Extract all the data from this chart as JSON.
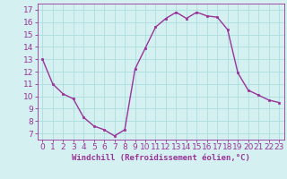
{
  "x": [
    0,
    1,
    2,
    3,
    4,
    5,
    6,
    7,
    8,
    9,
    10,
    11,
    12,
    13,
    14,
    15,
    16,
    17,
    18,
    19,
    20,
    21,
    22,
    23
  ],
  "y": [
    13,
    11,
    10.2,
    9.8,
    8.3,
    7.6,
    7.3,
    6.8,
    7.3,
    12.2,
    13.9,
    15.6,
    16.3,
    16.8,
    16.3,
    16.8,
    16.5,
    16.4,
    15.4,
    11.9,
    10.5,
    10.1,
    9.7,
    9.5
  ],
  "line_color": "#993399",
  "marker": "s",
  "marker_size": 1.8,
  "bg_color": "#d4f0f0",
  "grid_color": "#aadddd",
  "xlabel": "Windchill (Refroidissement éolien,°C)",
  "ylabel_ticks": [
    7,
    8,
    9,
    10,
    11,
    12,
    13,
    14,
    15,
    16,
    17
  ],
  "xlim": [
    -0.5,
    23.5
  ],
  "ylim": [
    6.5,
    17.5
  ],
  "line_color_border": "#993399",
  "xlabel_color": "#993399",
  "tick_color": "#993399",
  "xlabel_fontsize": 6.5,
  "tick_fontsize": 6.5,
  "linewidth": 1.0
}
